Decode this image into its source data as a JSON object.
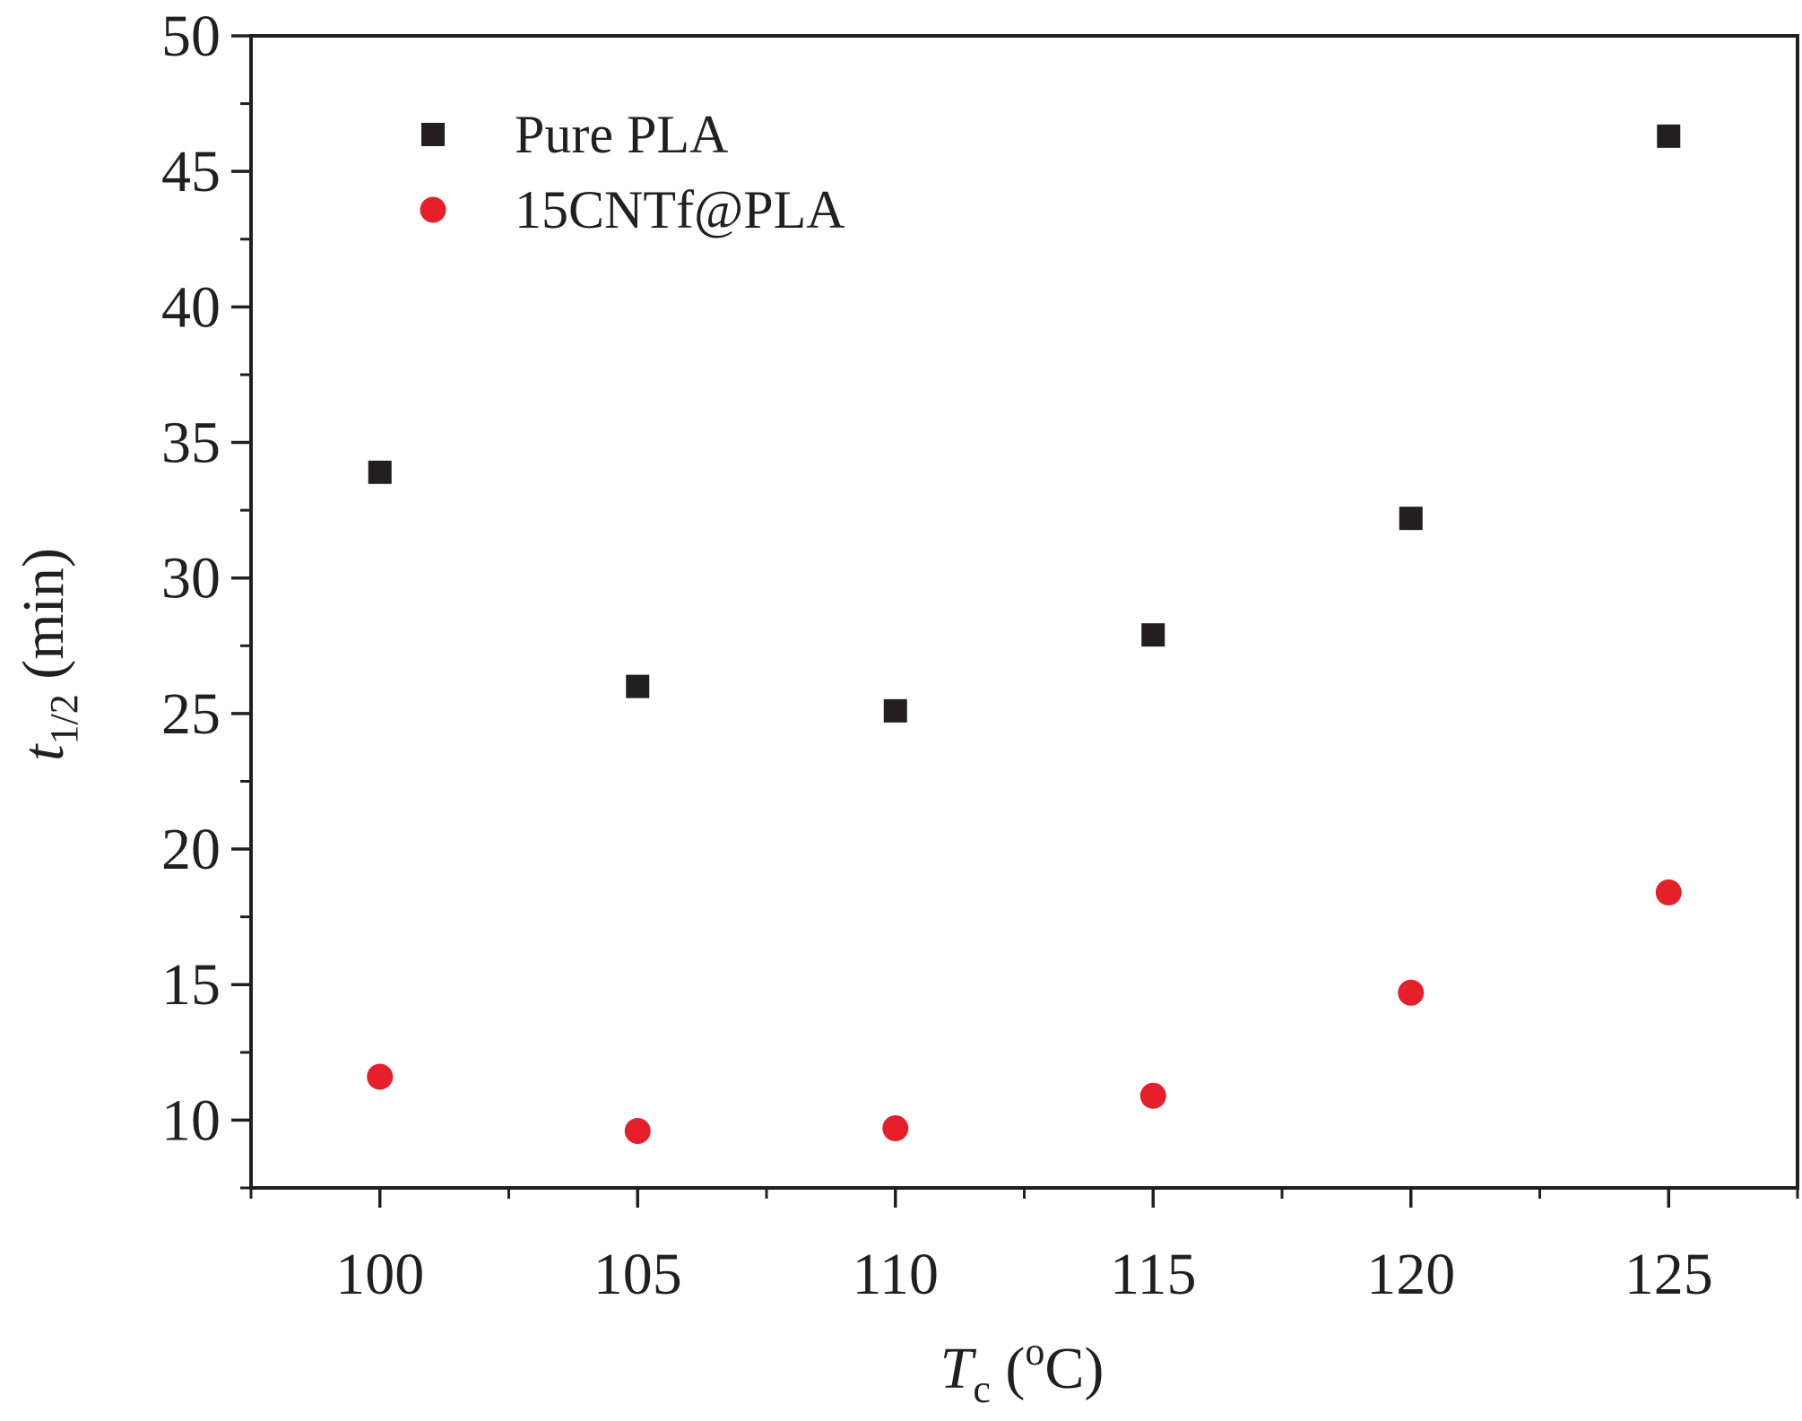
{
  "chart_data": {
    "type": "scatter",
    "title": "",
    "xlabel": {
      "main": "T",
      "sub": "c",
      "rest": " (",
      "sup": "o",
      "unit": "C)"
    },
    "ylabel": {
      "main": "t",
      "sub": "1/2",
      "rest": " (min)"
    },
    "xlim": [
      97.5,
      127.5
    ],
    "ylim": [
      7.5,
      50
    ],
    "x_ticks": [
      100,
      105,
      110,
      115,
      120,
      125
    ],
    "x_tick_labels": [
      "100",
      "105",
      "110",
      "115",
      "120",
      "125"
    ],
    "y_ticks": [
      10,
      15,
      20,
      25,
      30,
      35,
      40,
      45,
      50
    ],
    "y_tick_labels": [
      "10",
      "15",
      "20",
      "25",
      "30",
      "35",
      "40",
      "45",
      "50"
    ],
    "legend_position": "top-left",
    "grid": false,
    "series": [
      {
        "name": "Pure PLA",
        "marker": "square",
        "color": "#231f20",
        "x": [
          100,
          105,
          110,
          115,
          120,
          125
        ],
        "y": [
          33.9,
          26.0,
          25.1,
          27.9,
          32.2,
          46.3
        ]
      },
      {
        "name": "15CNTf@PLA",
        "marker": "circle",
        "color": "#e5202a",
        "x": [
          100,
          105,
          110,
          115,
          120,
          125
        ],
        "y": [
          11.6,
          9.6,
          9.7,
          10.9,
          14.7,
          18.4
        ]
      }
    ]
  }
}
